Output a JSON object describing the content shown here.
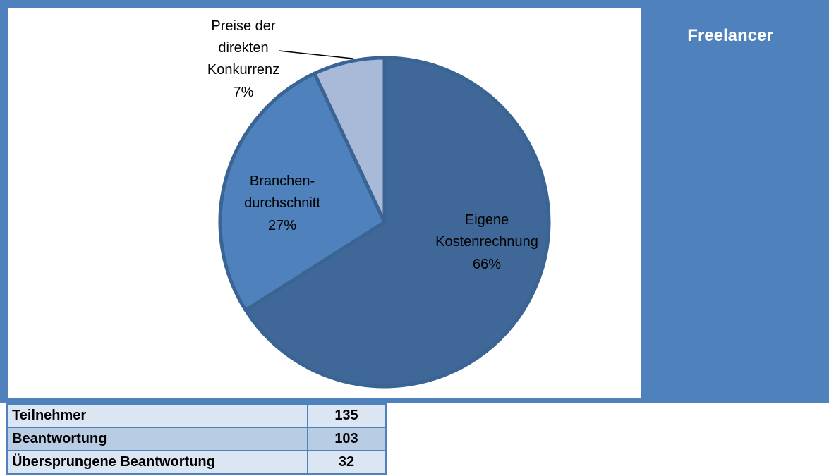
{
  "chart_data": {
    "type": "pie",
    "title": "Freelancer",
    "categories": [
      [
        "Eigene",
        "Kostenrechnung"
      ],
      [
        "Branchen-",
        "durchschnitt"
      ],
      [
        "Preise der",
        "direkten",
        "Konkurrenz"
      ]
    ],
    "values": [
      66,
      27,
      7
    ],
    "value_labels": [
      "66%",
      "27%",
      "7%"
    ],
    "colors": [
      "#3f6797",
      "#4f81bd",
      "#a9b9d8"
    ]
  },
  "table": {
    "rows": [
      [
        "Teilnehmer",
        135
      ],
      [
        "Beantwortung",
        103
      ],
      [
        "Übersprungene Beantwortung",
        32
      ]
    ]
  }
}
